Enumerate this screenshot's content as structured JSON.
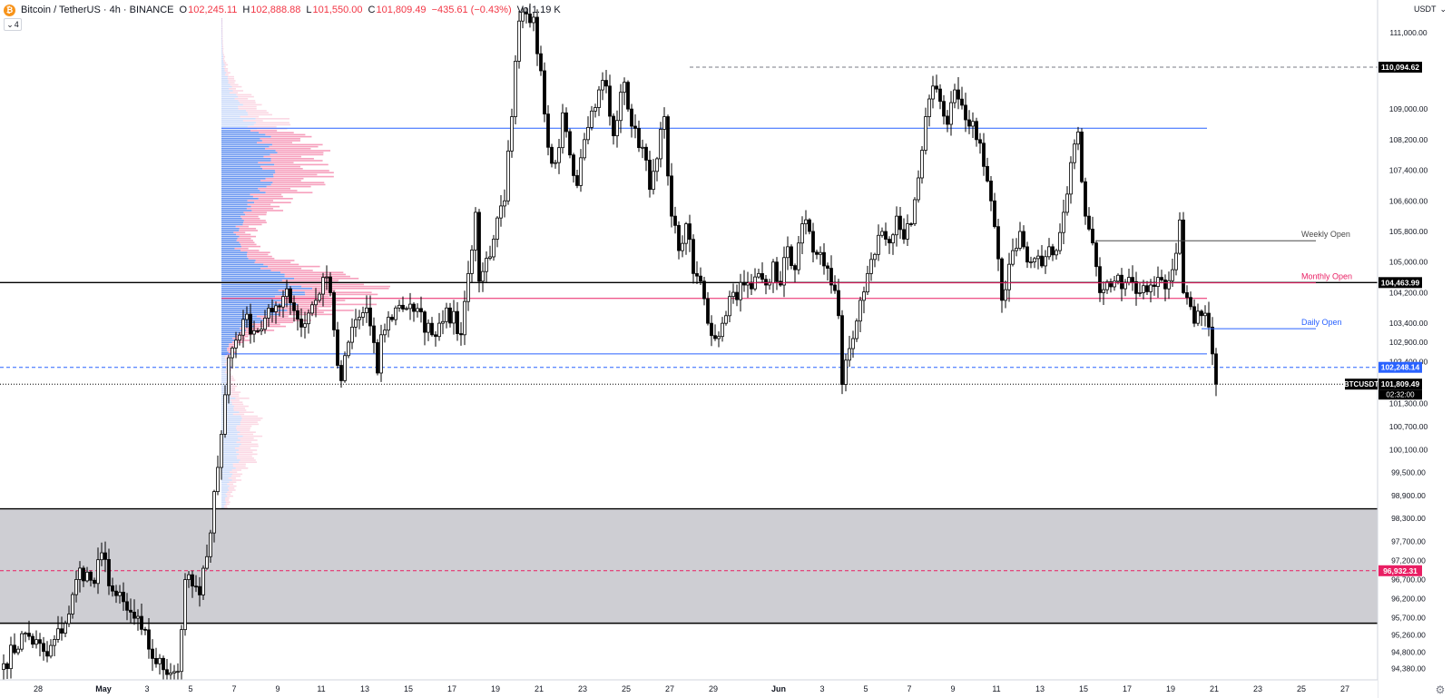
{
  "legend": {
    "symbol": "Bitcoin / TetherUS · 4h · BINANCE",
    "open_key": "O",
    "open": "102,245.11",
    "high_key": "H",
    "high": "102,888.88",
    "low_key": "L",
    "low": "101,550.00",
    "close_key": "C",
    "close": "101,809.49",
    "change": "−435.61 (−0.43%)",
    "vol_key": "Vol",
    "vol": "1.19 K",
    "collapse_count": "4"
  },
  "currency": "USDT",
  "colors": {
    "candle_up_body": "#ffffff",
    "candle_down_body": "#000000",
    "candle_outline": "#000000",
    "blue_level": "#2962ff",
    "pink_level": "#e91e63",
    "black_level": "#000000",
    "grey_zone": "#c5c6cb",
    "profile_blue": "#5b8cf0",
    "profile_pink": "#f48fb1",
    "price_tag_blue": "#2962ff",
    "price_tag_red": "#e91e63",
    "price_tag_black": "#000000"
  },
  "chart_data": {
    "type": "candlestick",
    "title": "Bitcoin / TetherUS · 4h · BINANCE",
    "yaxis": {
      "ylim": [
        94080,
        111850
      ],
      "tick_labels": [
        "111,000.00",
        "109,000.00",
        "108,200.00",
        "107,400.00",
        "106,600.00",
        "105,800.00",
        "105,000.00",
        "104,200.00",
        "103,400.00",
        "102,900.00",
        "102,400.00",
        "101,300.00",
        "100,700.00",
        "100,100.00",
        "99,500.00",
        "98,900.00",
        "98,300.00",
        "97,700.00",
        "97,200.00",
        "96,700.00",
        "96,200.00",
        "95,700.00",
        "95,260.00",
        "94,800.00",
        "94,380.00"
      ],
      "tick_values": [
        111000,
        109000,
        108200,
        107400,
        106600,
        105800,
        105000,
        104200,
        103400,
        102900,
        102400,
        101300,
        100700,
        100100,
        99500,
        98900,
        98300,
        97700,
        97200,
        96700,
        96200,
        95700,
        95260,
        94800,
        94380
      ]
    },
    "xaxis": {
      "tick_labels": [
        "28",
        "May",
        "3",
        "5",
        "7",
        "9",
        "11",
        "13",
        "15",
        "17",
        "19",
        "21",
        "23",
        "25",
        "27",
        "29",
        "Jun",
        "3",
        "5",
        "7",
        "9",
        "11",
        "13",
        "15",
        "17",
        "19",
        "21",
        "23",
        "25",
        "27"
      ],
      "tick_bar_index": [
        0,
        18,
        30,
        42,
        54,
        66,
        78,
        90,
        102,
        114,
        126,
        138,
        150,
        162,
        174,
        186,
        204,
        216,
        228,
        240,
        252,
        264,
        276,
        288,
        300,
        312,
        324,
        336,
        348,
        360
      ],
      "label_bold": [
        "May",
        "Jun"
      ]
    },
    "waypoints": [
      [
        0,
        94500
      ],
      [
        6,
        95300
      ],
      [
        12,
        94700
      ],
      [
        18,
        95800
      ],
      [
        21,
        97000
      ],
      [
        25,
        96600
      ],
      [
        27,
        97400
      ],
      [
        30,
        96400
      ],
      [
        34,
        95900
      ],
      [
        38,
        95400
      ],
      [
        42,
        94500
      ],
      [
        48,
        94300
      ],
      [
        50,
        96700
      ],
      [
        54,
        96300
      ],
      [
        56,
        97300
      ],
      [
        58,
        99000
      ],
      [
        60,
        100500
      ],
      [
        62,
        102500
      ],
      [
        66,
        103500
      ],
      [
        70,
        103200
      ],
      [
        74,
        103700
      ],
      [
        78,
        104300
      ],
      [
        82,
        103300
      ],
      [
        86,
        104000
      ],
      [
        88,
        104600
      ],
      [
        90,
        104200
      ],
      [
        92,
        102300
      ],
      [
        93,
        101900
      ],
      [
        96,
        103300
      ],
      [
        100,
        103800
      ],
      [
        103,
        102100
      ],
      [
        104,
        103100
      ],
      [
        108,
        103800
      ],
      [
        112,
        103900
      ],
      [
        118,
        103100
      ],
      [
        122,
        103800
      ],
      [
        126,
        103100
      ],
      [
        128,
        104700
      ],
      [
        130,
        106300
      ],
      [
        131,
        104500
      ],
      [
        135,
        105600
      ],
      [
        138,
        106600
      ],
      [
        140,
        108800
      ],
      [
        142,
        111300
      ],
      [
        146,
        111400
      ],
      [
        148,
        110000
      ],
      [
        150,
        108000
      ],
      [
        152,
        107600
      ],
      [
        154,
        108900
      ],
      [
        156,
        107800
      ],
      [
        158,
        107000
      ],
      [
        160,
        108200
      ],
      [
        164,
        109500
      ],
      [
        166,
        109600
      ],
      [
        168,
        108300
      ],
      [
        171,
        109700
      ],
      [
        172,
        109000
      ],
      [
        176,
        108000
      ],
      [
        178,
        106900
      ],
      [
        180,
        107700
      ],
      [
        182,
        108800
      ],
      [
        184,
        106200
      ],
      [
        186,
        105300
      ],
      [
        188,
        106000
      ],
      [
        190,
        104700
      ],
      [
        192,
        104500
      ],
      [
        194,
        103400
      ],
      [
        196,
        103000
      ],
      [
        198,
        103400
      ],
      [
        200,
        104100
      ],
      [
        204,
        104400
      ],
      [
        206,
        104300
      ],
      [
        208,
        104700
      ],
      [
        210,
        104400
      ],
      [
        212,
        105000
      ],
      [
        214,
        104400
      ],
      [
        216,
        105400
      ],
      [
        218,
        104800
      ],
      [
        220,
        106000
      ],
      [
        222,
        105800
      ],
      [
        224,
        105200
      ],
      [
        226,
        104900
      ],
      [
        228,
        104400
      ],
      [
        230,
        103600
      ],
      [
        231,
        101800
      ],
      [
        234,
        103000
      ],
      [
        236,
        104000
      ],
      [
        238,
        104700
      ],
      [
        240,
        105200
      ],
      [
        242,
        105800
      ],
      [
        244,
        105500
      ],
      [
        246,
        106200
      ],
      [
        248,
        105600
      ],
      [
        250,
        106000
      ],
      [
        252,
        107200
      ],
      [
        254,
        108800
      ],
      [
        256,
        109600
      ],
      [
        258,
        109200
      ],
      [
        260,
        108600
      ],
      [
        262,
        109500
      ],
      [
        264,
        109100
      ],
      [
        268,
        108200
      ],
      [
        270,
        107500
      ],
      [
        272,
        106600
      ],
      [
        275,
        104000
      ],
      [
        278,
        105300
      ],
      [
        280,
        105800
      ],
      [
        282,
        105000
      ],
      [
        286,
        104900
      ],
      [
        288,
        105400
      ],
      [
        290,
        105300
      ],
      [
        292,
        106300
      ],
      [
        294,
        107600
      ],
      [
        296,
        108400
      ],
      [
        297,
        107100
      ],
      [
        298,
        106200
      ],
      [
        300,
        105500
      ],
      [
        302,
        104200
      ],
      [
        306,
        104500
      ],
      [
        310,
        104600
      ],
      [
        313,
        104200
      ],
      [
        316,
        104400
      ],
      [
        318,
        104600
      ],
      [
        320,
        104300
      ],
      [
        322,
        104800
      ],
      [
        324,
        106100
      ],
      [
        325,
        104200
      ],
      [
        328,
        103400
      ],
      [
        330,
        103600
      ],
      [
        332,
        103300
      ],
      [
        333,
        102600
      ],
      [
        334,
        101809
      ]
    ],
    "levels": [
      {
        "price": 110094.62,
        "label": "110,094.62",
        "style": "dashed",
        "color": "grey"
      },
      {
        "price": 108500,
        "style": "solid",
        "color": "blue"
      },
      {
        "price": 104463.99,
        "label": "104,463.99",
        "style": "solid",
        "color": "black"
      },
      {
        "price": 104050,
        "style": "solid",
        "color": "pink"
      },
      {
        "price": 102600,
        "style": "solid",
        "color": "blue"
      },
      {
        "price": 102248.14,
        "label": "102,248.14",
        "style": "dashed",
        "color": "blue"
      },
      {
        "price": 101809.49,
        "label": "101,809.49",
        "style": "dotted",
        "color": "black"
      },
      {
        "price": 98550,
        "style": "solid",
        "color": "black"
      },
      {
        "price": 96932.31,
        "label": "96,932.31",
        "style": "dashed",
        "color": "pink"
      },
      {
        "price": 95560,
        "style": "solid",
        "color": "black"
      }
    ],
    "zone": {
      "top": 98550,
      "bottom": 95560
    },
    "annotations": [
      {
        "text": "Weekly Open",
        "price": 105700,
        "from_bar": 301,
        "color": "grey"
      },
      {
        "text": "Monthly Open",
        "price": 104600,
        "from_bar": 205,
        "color": "pink"
      },
      {
        "text": "Daily Open",
        "price": 103400,
        "from_bar": 330,
        "color": "blue"
      }
    ],
    "last_price_tag": {
      "symbol": "BTCUSDT",
      "price": "101,809.49",
      "countdown": "02:32:00"
    }
  }
}
